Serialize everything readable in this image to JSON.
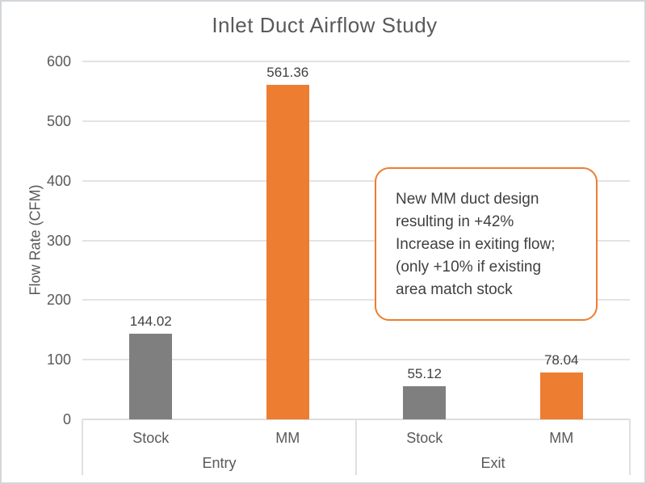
{
  "chart_data": {
    "type": "bar",
    "title": "Inlet Duct Airflow Study",
    "xlabel": "",
    "ylabel": "Flow Rate (CFM)",
    "ylim": [
      0,
      600
    ],
    "yticks": [
      0,
      100,
      200,
      300,
      400,
      500,
      600
    ],
    "grid": true,
    "legend_position": "none",
    "data_labels": true,
    "groups": [
      {
        "label": "Entry",
        "bars": [
          {
            "category": "Stock",
            "value": 144.02,
            "label": "144.02",
            "color": "#7f7f7f"
          },
          {
            "category": "MM",
            "value": 561.36,
            "label": "561.36",
            "color": "#ed7d31"
          }
        ]
      },
      {
        "label": "Exit",
        "bars": [
          {
            "category": "Stock",
            "value": 55.12,
            "label": "55.12",
            "color": "#7f7f7f"
          },
          {
            "category": "MM",
            "value": 78.04,
            "label": "78.04",
            "color": "#ed7d31"
          }
        ]
      }
    ],
    "annotation": {
      "lines": [
        "New MM duct design",
        "resulting in +42%",
        "Increase in exiting flow;",
        "(only +10% if existing",
        "area match stock"
      ],
      "text": "New MM duct design resulting in +42% Increase in exiting flow; (only +10% if existing area match stock",
      "border_color": "#ed7d31",
      "fill_color": "#ffffff"
    },
    "colors": {
      "series_stock": "#7f7f7f",
      "series_mm": "#ed7d31",
      "gridline": "#e3e3e3",
      "axis_text": "#595959",
      "data_label_text": "#404040",
      "title_text": "#595959"
    }
  }
}
